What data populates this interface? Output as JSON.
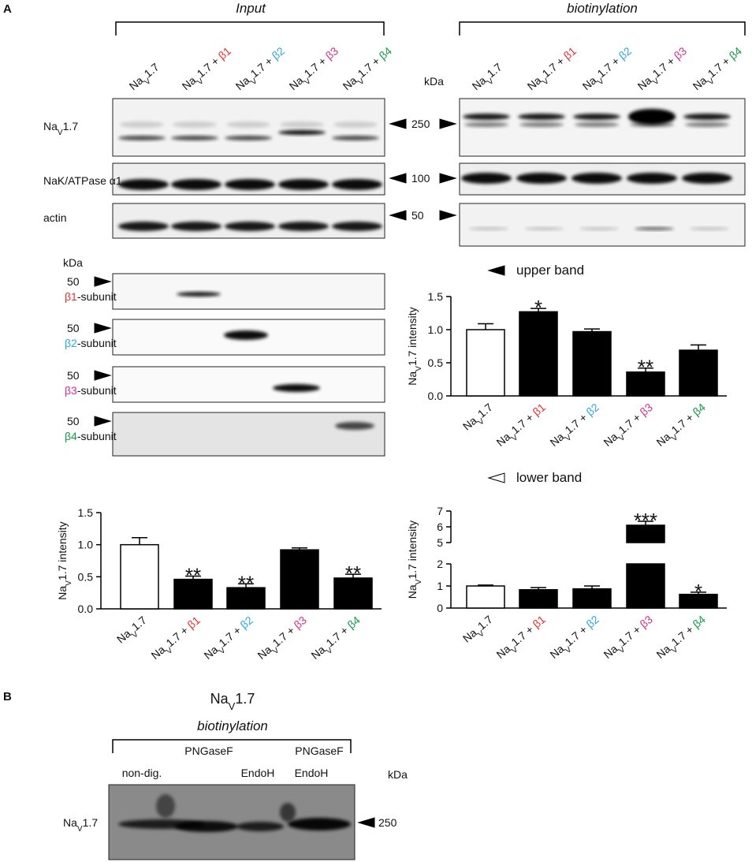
{
  "panel_a": {
    "label": "A",
    "input_title": "Input",
    "biot_title": "biotinylation",
    "kda": "kDa",
    "input_lanes": [
      [
        {
          "text": "Na"
        },
        {
          "text": "V",
          "sub": true
        },
        {
          "text": "1.7"
        }
      ],
      [
        {
          "text": "Na"
        },
        {
          "text": "V",
          "sub": true
        },
        {
          "text": "1.7 + "
        },
        {
          "text": "β1",
          "color": "#e5312c"
        }
      ],
      [
        {
          "text": "Na"
        },
        {
          "text": "V",
          "sub": true
        },
        {
          "text": "1.7 + "
        },
        {
          "text": "β2",
          "color": "#2aa7de"
        }
      ],
      [
        {
          "text": "Na"
        },
        {
          "text": "V",
          "sub": true
        },
        {
          "text": "1.7 + "
        },
        {
          "text": "β3",
          "color": "#d62f8c"
        }
      ],
      [
        {
          "text": "Na"
        },
        {
          "text": "V",
          "sub": true
        },
        {
          "text": "1.7 + "
        },
        {
          "text": "β4",
          "color": "#139a48"
        }
      ]
    ],
    "biot_lanes": [
      [
        {
          "text": "Na"
        },
        {
          "text": "V",
          "sub": true
        },
        {
          "text": "1.7"
        }
      ],
      [
        {
          "text": "Na"
        },
        {
          "text": "V",
          "sub": true
        },
        {
          "text": "1.7 + "
        },
        {
          "text": "β1",
          "color": "#e5312c"
        }
      ],
      [
        {
          "text": "Na"
        },
        {
          "text": "V",
          "sub": true
        },
        {
          "text": "1.7 + "
        },
        {
          "text": "β2",
          "color": "#2aa7de"
        }
      ],
      [
        {
          "text": "Na"
        },
        {
          "text": "V",
          "sub": true
        },
        {
          "text": "1.7 + "
        },
        {
          "text": "β3",
          "color": "#d62f8c"
        }
      ],
      [
        {
          "text": "Na"
        },
        {
          "text": "V",
          "sub": true
        },
        {
          "text": "1.7 + "
        },
        {
          "text": "β4",
          "color": "#139a48"
        }
      ]
    ],
    "blot_rows": [
      {
        "label": [
          {
            "text": "Na"
          },
          {
            "text": "V",
            "sub": true
          },
          {
            "text": "1.7"
          }
        ],
        "marker": "250"
      },
      {
        "label": [
          {
            "text": "NaK/ATPase α1"
          }
        ],
        "marker": "100"
      },
      {
        "label": [
          {
            "text": "actin"
          }
        ],
        "marker": "50"
      }
    ],
    "subunit_kda": "kDa",
    "subunits": [
      {
        "marker": "50",
        "label": [
          {
            "text": "β1",
            "color": "#e5312c"
          },
          {
            "text": "-subunit"
          }
        ]
      },
      {
        "marker": "50",
        "label": [
          {
            "text": "β2",
            "color": "#2aa7de"
          },
          {
            "text": "-subunit"
          }
        ]
      },
      {
        "marker": "50",
        "label": [
          {
            "text": "β3",
            "color": "#d62f8c"
          },
          {
            "text": "-subunit"
          }
        ]
      },
      {
        "marker": "50",
        "label": [
          {
            "text": "β4",
            "color": "#139a48"
          },
          {
            "text": "-subunit"
          }
        ]
      }
    ]
  },
  "chart_data": [
    {
      "type": "bar",
      "title": "upper band",
      "title_marker": "filled",
      "y_label": [
        {
          "text": "Na"
        },
        {
          "text": "V",
          "sub": true
        },
        {
          "text": "1.7 intensity"
        }
      ],
      "categories": [
        [
          {
            "text": "Na"
          },
          {
            "text": "V",
            "sub": true
          },
          {
            "text": "1.7"
          }
        ],
        [
          {
            "text": "Na"
          },
          {
            "text": "V",
            "sub": true
          },
          {
            "text": "1.7 + "
          },
          {
            "text": "β1",
            "color": "#e5312c"
          }
        ],
        [
          {
            "text": "Na"
          },
          {
            "text": "V",
            "sub": true
          },
          {
            "text": "1.7 + "
          },
          {
            "text": "β2",
            "color": "#2aa7de"
          }
        ],
        [
          {
            "text": "Na"
          },
          {
            "text": "V",
            "sub": true
          },
          {
            "text": "1.7 + "
          },
          {
            "text": "β3",
            "color": "#d62f8c"
          }
        ],
        [
          {
            "text": "Na"
          },
          {
            "text": "V",
            "sub": true
          },
          {
            "text": "1.7 + "
          },
          {
            "text": "β4",
            "color": "#139a48"
          }
        ]
      ],
      "values": [
        1.0,
        1.27,
        0.97,
        0.36,
        0.69
      ],
      "errors": [
        0.09,
        0.05,
        0.04,
        0.06,
        0.08
      ],
      "annotations": [
        null,
        "*",
        null,
        "**",
        null
      ],
      "colors": [
        "#ffffff",
        "#000000",
        "#000000",
        "#000000",
        "#000000"
      ],
      "ylim": [
        0,
        1.5
      ],
      "yticks": [
        {
          "value": 0,
          "label": "0.0"
        },
        {
          "value": 0.5,
          "label": "0.5"
        },
        {
          "value": 1,
          "label": "1.0"
        },
        {
          "value": 1.5,
          "label": "1.5"
        }
      ]
    },
    {
      "type": "bar",
      "y_label": [
        {
          "text": "Na"
        },
        {
          "text": "V",
          "sub": true
        },
        {
          "text": "1.7 intensity"
        }
      ],
      "categories": [
        [
          {
            "text": "Na"
          },
          {
            "text": "V",
            "sub": true
          },
          {
            "text": "1.7"
          }
        ],
        [
          {
            "text": "Na"
          },
          {
            "text": "V",
            "sub": true
          },
          {
            "text": "1.7 + "
          },
          {
            "text": "β1",
            "color": "#e5312c"
          }
        ],
        [
          {
            "text": "Na"
          },
          {
            "text": "V",
            "sub": true
          },
          {
            "text": "1.7 + "
          },
          {
            "text": "β2",
            "color": "#2aa7de"
          }
        ],
        [
          {
            "text": "Na"
          },
          {
            "text": "V",
            "sub": true
          },
          {
            "text": "1.7 + "
          },
          {
            "text": "β3",
            "color": "#d62f8c"
          }
        ],
        [
          {
            "text": "Na"
          },
          {
            "text": "V",
            "sub": true
          },
          {
            "text": "1.7 + "
          },
          {
            "text": "β4",
            "color": "#139a48"
          }
        ]
      ],
      "values": [
        1.0,
        0.46,
        0.33,
        0.92,
        0.48
      ],
      "errors": [
        0.11,
        0.05,
        0.06,
        0.03,
        0.06
      ],
      "annotations": [
        null,
        "**",
        "**",
        null,
        "**"
      ],
      "colors": [
        "#ffffff",
        "#000000",
        "#000000",
        "#000000",
        "#000000"
      ],
      "ylim": [
        0,
        1.5
      ],
      "yticks": [
        {
          "value": 0,
          "label": "0.0"
        },
        {
          "value": 0.5,
          "label": "0.5"
        },
        {
          "value": 1,
          "label": "1.0"
        },
        {
          "value": 1.5,
          "label": "1.5"
        }
      ]
    },
    {
      "type": "bar",
      "title": "lower band",
      "title_marker": "open",
      "y_label": [
        {
          "text": "Na"
        },
        {
          "text": "V",
          "sub": true
        },
        {
          "text": "1.7 intensity"
        }
      ],
      "categories": [
        [
          {
            "text": "Na"
          },
          {
            "text": "V",
            "sub": true
          },
          {
            "text": "1.7"
          }
        ],
        [
          {
            "text": "Na"
          },
          {
            "text": "V",
            "sub": true
          },
          {
            "text": "1.7 + "
          },
          {
            "text": "β1",
            "color": "#e5312c"
          }
        ],
        [
          {
            "text": "Na"
          },
          {
            "text": "V",
            "sub": true
          },
          {
            "text": "1.7 + "
          },
          {
            "text": "β2",
            "color": "#2aa7de"
          }
        ],
        [
          {
            "text": "Na"
          },
          {
            "text": "V",
            "sub": true
          },
          {
            "text": "1.7 + "
          },
          {
            "text": "β3",
            "color": "#d62f8c"
          }
        ],
        [
          {
            "text": "Na"
          },
          {
            "text": "V",
            "sub": true
          },
          {
            "text": "1.7 + "
          },
          {
            "text": "β4",
            "color": "#139a48"
          }
        ]
      ],
      "values": [
        1.0,
        0.83,
        0.87,
        6.1,
        0.62
      ],
      "errors": [
        0.04,
        0.1,
        0.13,
        0.25,
        0.1
      ],
      "annotations": [
        null,
        null,
        null,
        "***",
        "*"
      ],
      "colors": [
        "#ffffff",
        "#000000",
        "#000000",
        "#000000",
        "#000000"
      ],
      "broken_axis": [
        {
          "ylim": [
            0,
            2
          ],
          "yticks": [
            0,
            1,
            2
          ]
        },
        {
          "ylim": [
            5,
            7
          ],
          "yticks": [
            5,
            6,
            7
          ]
        }
      ]
    }
  ],
  "panel_b": {
    "label": "B",
    "title": [
      {
        "text": "Na"
      },
      {
        "text": "V",
        "sub": true
      },
      {
        "text": "1.7"
      }
    ],
    "subtitle": "biotinylation",
    "lanes_top": [
      "PNGaseF",
      "PNGaseF"
    ],
    "lanes_bottom": [
      "non-dig.",
      "EndoH",
      "EndoH"
    ],
    "kda": "kDa",
    "marker": "250",
    "row_label": [
      {
        "text": "Na"
      },
      {
        "text": "V",
        "sub": true
      },
      {
        "text": "1.7"
      }
    ]
  }
}
